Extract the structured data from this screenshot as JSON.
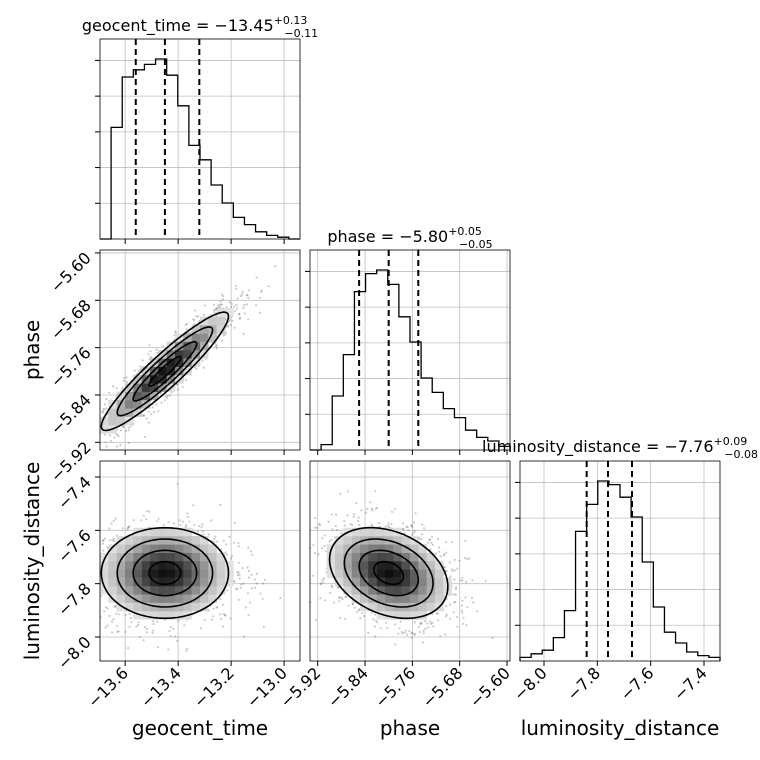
{
  "chart_data": {
    "type": "corner",
    "parameters": [
      "geocent_time",
      "phase",
      "luminosity_distance"
    ],
    "titles": [
      {
        "main": "geocent_time = −13.45",
        "sup": "+0.13",
        "sub": "−0.11"
      },
      {
        "main": "phase = −5.80",
        "sup": "+0.05",
        "sub": "−0.05"
      },
      {
        "main": "luminosity_distance = −7.76",
        "sup": "+0.09",
        "sub": "−0.08"
      }
    ],
    "ranges": {
      "geocent_time": [
        -13.695,
        -12.94
      ],
      "phase": [
        -5.933,
        -5.595
      ],
      "luminosity_distance": [
        -8.09,
        -7.34
      ]
    },
    "ticks": {
      "geocent_time": [
        -13.6,
        -13.4,
        -13.2,
        -13.0
      ],
      "phase": [
        -5.92,
        -5.84,
        -5.76,
        -5.68,
        -5.6
      ],
      "luminosity_distance": [
        -8.0,
        -7.8,
        -7.6,
        -7.4
      ]
    },
    "tick_labels": {
      "geocent_time": [
        "−13.6",
        "−13.4",
        "−13.2",
        "−13.0"
      ],
      "phase": [
        "−5.92",
        "−5.84",
        "−5.76",
        "−5.68",
        "−5.60"
      ],
      "luminosity_distance": [
        "−8.0",
        "−7.8",
        "−7.6",
        "−7.4"
      ]
    },
    "quantiles": {
      "geocent_time": [
        -13.56,
        -13.45,
        -13.32
      ],
      "phase": [
        -5.85,
        -5.8,
        -5.75
      ],
      "luminosity_distance": [
        -7.84,
        -7.76,
        -7.67
      ]
    },
    "histograms": {
      "geocent_time": [
        0.0,
        0.62,
        0.9,
        0.94,
        0.97,
        1.0,
        0.91,
        0.74,
        0.52,
        0.44,
        0.3,
        0.2,
        0.12,
        0.08,
        0.04,
        0.02,
        0.01,
        0.0
      ],
      "phase": [
        0.0,
        0.03,
        0.3,
        0.53,
        0.88,
        0.98,
        1.0,
        0.92,
        0.74,
        0.6,
        0.4,
        0.32,
        0.23,
        0.18,
        0.11,
        0.07,
        0.05,
        0.02
      ],
      "luminosity_distance": [
        0.02,
        0.04,
        0.06,
        0.13,
        0.28,
        0.72,
        0.87,
        1.0,
        0.98,
        0.91,
        0.8,
        0.55,
        0.3,
        0.16,
        0.1,
        0.05,
        0.03,
        0.02
      ]
    },
    "correlations": {
      "phase|geocent_time": 0.93,
      "luminosity_distance|geocent_time": 0.0,
      "luminosity_distance|phase": -0.3
    },
    "grid": true
  }
}
